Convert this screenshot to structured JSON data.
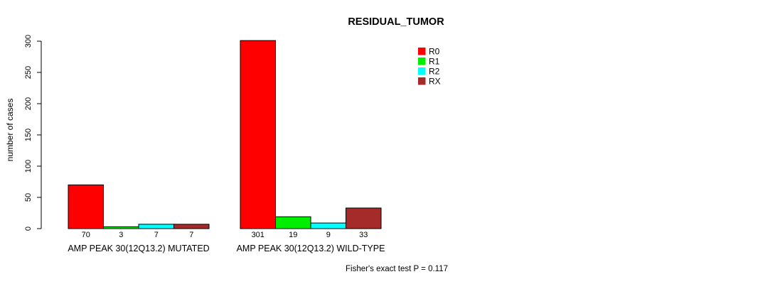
{
  "chart_data": {
    "type": "bar",
    "title": "RESIDUAL_TUMOR",
    "xlabel": "",
    "ylabel": "number of cases",
    "ylim": [
      0,
      300
    ],
    "yticks": [
      0,
      50,
      100,
      150,
      200,
      250,
      300
    ],
    "grid": false,
    "legend_position": "top-right",
    "categories": [
      "AMP PEAK 30(12Q13.2) MUTATED",
      "AMP PEAK 30(12Q13.2) WILD-TYPE"
    ],
    "series": [
      {
        "name": "R0",
        "color": "#ff0000",
        "values": [
          70,
          301
        ]
      },
      {
        "name": "R1",
        "color": "#00ee00",
        "values": [
          3,
          19
        ]
      },
      {
        "name": "R2",
        "color": "#00ffff",
        "values": [
          7,
          9
        ]
      },
      {
        "name": "RX",
        "color": "#a52a2a",
        "values": [
          7,
          33
        ]
      }
    ],
    "bar_value_labels": [
      [
        "70",
        "3",
        "7",
        "7"
      ],
      [
        "301",
        "19",
        "9",
        "33"
      ]
    ],
    "annotation": "Fisher's exact test P = 0.117"
  },
  "colors": {
    "bar_border": "#000000",
    "axis": "#000000",
    "text": "#000000",
    "background": "#ffffff"
  }
}
